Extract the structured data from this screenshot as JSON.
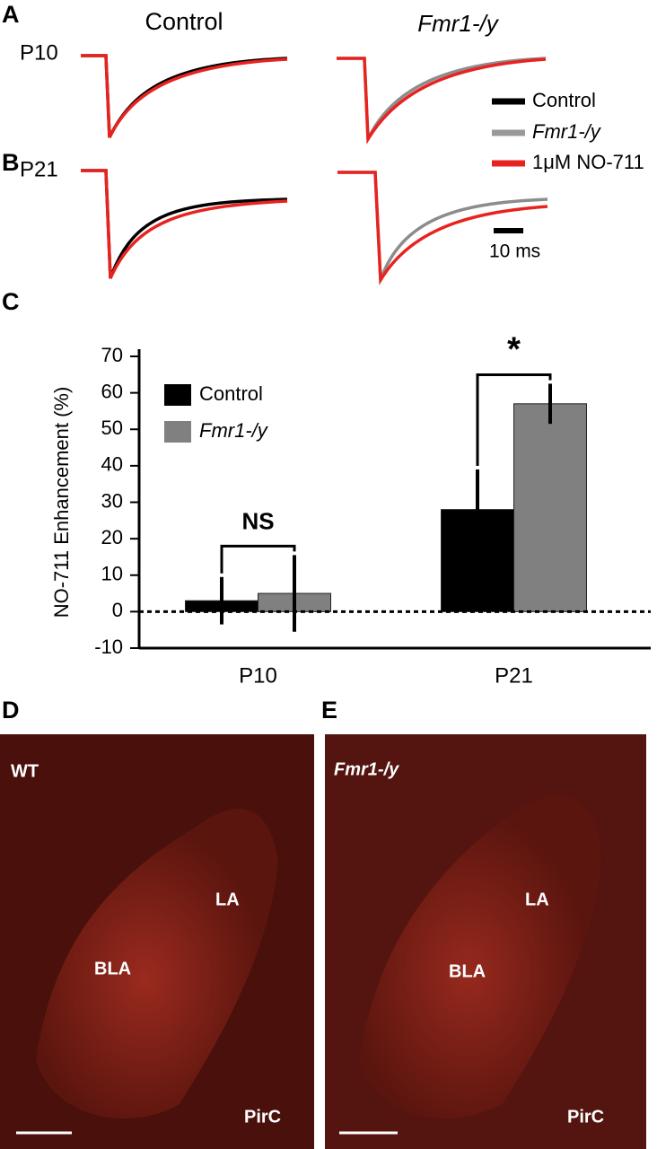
{
  "panels": {
    "a": "A",
    "b": "B",
    "c": "C",
    "d": "D",
    "e": "E"
  },
  "traces": {
    "col_control": "Control",
    "col_fmr1": "Fmr1-/y",
    "row_p10": "P10",
    "row_p21": "P21",
    "legend": [
      "Control",
      "Fmr1-/y",
      "1μM NO-711"
    ],
    "scale_bar": "10 ms"
  },
  "chart_data": {
    "type": "bar",
    "ylabel": "NO-711 Enhancement (%)",
    "categories": [
      "P10",
      "P21"
    ],
    "series": [
      {
        "name": "Control",
        "color": "#000000",
        "values": [
          3,
          28
        ],
        "errors": [
          6.5,
          11
        ]
      },
      {
        "name": "Fmr1-/y",
        "color": "#808080",
        "values": [
          5,
          57
        ],
        "errors": [
          10.5,
          5.5
        ]
      }
    ],
    "ylim": [
      -10,
      70
    ],
    "yticks": [
      -10,
      0,
      10,
      20,
      30,
      40,
      50,
      60,
      70
    ],
    "reference_line": 0,
    "annotations": [
      "NS",
      "*"
    ],
    "legend": "upper left"
  },
  "images": {
    "d": {
      "title": "WT",
      "regions": [
        "LA",
        "BLA",
        "PirC"
      ]
    },
    "e": {
      "title": "Fmr1-/y",
      "regions": [
        "LA",
        "BLA",
        "PirC"
      ]
    }
  }
}
